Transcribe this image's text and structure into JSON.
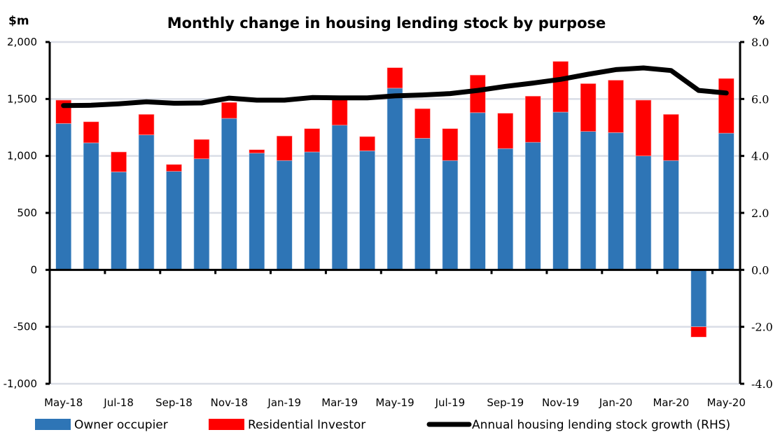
{
  "chart_data": {
    "type": "bar",
    "subtype": "stacked bar with secondary-axis line",
    "title": "Monthly change in housing lending stock by purpose",
    "ylabel": "$m",
    "y2label": "%",
    "ylim": [
      -1000,
      2000
    ],
    "y2lim": [
      -4.0,
      8.0
    ],
    "yticks": [
      -1000,
      -500,
      0,
      500,
      1000,
      1500,
      2000
    ],
    "ytick_labels": [
      "-1,000",
      "-500",
      "0",
      "500",
      "1,000",
      "1,500",
      "2,000"
    ],
    "y2ticks": [
      -4.0,
      -2.0,
      0.0,
      2.0,
      4.0,
      6.0,
      8.0
    ],
    "y2tick_labels": [
      "-4.0",
      "-2.0",
      "0.0",
      "2.0",
      "4.0",
      "6.0",
      "8.0"
    ],
    "grid": true,
    "legend_position": "bottom",
    "categories": [
      "May-18",
      "Jun-18",
      "Jul-18",
      "Aug-18",
      "Sep-18",
      "Oct-18",
      "Nov-18",
      "Dec-18",
      "Jan-19",
      "Feb-19",
      "Mar-19",
      "Apr-19",
      "May-19",
      "Jun-19",
      "Jul-19",
      "Aug-19",
      "Sep-19",
      "Oct-19",
      "Nov-19",
      "Dec-19",
      "Jan-20",
      "Feb-20",
      "Mar-20",
      "Apr-20",
      "May-20"
    ],
    "xtick_labels": [
      "May-18",
      "Jul-18",
      "Sep-18",
      "Nov-18",
      "Jan-19",
      "Mar-19",
      "May-19",
      "Jul-19",
      "Sep-19",
      "Nov-19",
      "Jan-20",
      "Mar-20",
      "May-20"
    ],
    "series": [
      {
        "name": "Owner occupier",
        "kind": "bar",
        "axis": "left",
        "color": "#2E75B6",
        "values": [
          1285,
          1115,
          860,
          1185,
          865,
          975,
          1330,
          1025,
          960,
          1035,
          1270,
          1045,
          1595,
          1155,
          960,
          1380,
          1065,
          1120,
          1385,
          1215,
          1205,
          1000,
          960,
          -500,
          1200
        ]
      },
      {
        "name": "Residential Investor",
        "kind": "bar",
        "axis": "left",
        "color": "#FF0000",
        "values": [
          205,
          185,
          175,
          180,
          60,
          170,
          140,
          30,
          215,
          205,
          230,
          125,
          180,
          260,
          280,
          330,
          310,
          405,
          445,
          420,
          460,
          490,
          405,
          -90,
          480
        ]
      },
      {
        "name": "Annual housing lending stock growth (RHS)",
        "kind": "line",
        "axis": "right",
        "color": "#000000",
        "values": [
          5.77,
          5.78,
          5.83,
          5.9,
          5.85,
          5.86,
          6.03,
          5.96,
          5.96,
          6.05,
          6.04,
          6.04,
          6.11,
          6.14,
          6.19,
          6.3,
          6.44,
          6.56,
          6.69,
          6.87,
          7.03,
          7.09,
          7.0,
          6.3,
          6.21
        ]
      }
    ],
    "gridline_color": "#D9DDE6"
  }
}
